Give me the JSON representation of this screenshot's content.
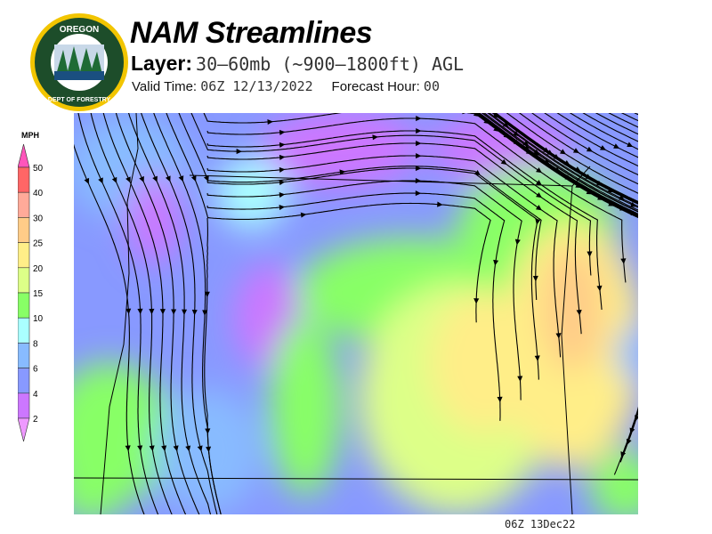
{
  "logo": {
    "text_top": "OREGON",
    "text_bottom": "DEPARTMENT OF FORESTRY"
  },
  "header": {
    "title": "NAM Streamlines",
    "layer_label": "Layer:",
    "layer_value": "30–60mb (~900–1800ft) AGL",
    "valid_label": "Valid Time:",
    "valid_value": "06Z 12/13/2022",
    "forecast_label": "Forecast Hour:",
    "forecast_value": "00"
  },
  "colorbar": {
    "unit": "MPH",
    "levels": [
      "50",
      "40",
      "30",
      "25",
      "20",
      "15",
      "10",
      "8",
      "6",
      "4",
      "2"
    ],
    "colors": [
      "#ff55bb",
      "#ff6666",
      "#ffaa99",
      "#ffcc88",
      "#ffee88",
      "#ddff88",
      "#88ff66",
      "#aaffff",
      "#88bbff",
      "#8899ff",
      "#cc77ff",
      "#ee99ff"
    ]
  },
  "map": {
    "timestamp": "06Z 13Dec22"
  }
}
